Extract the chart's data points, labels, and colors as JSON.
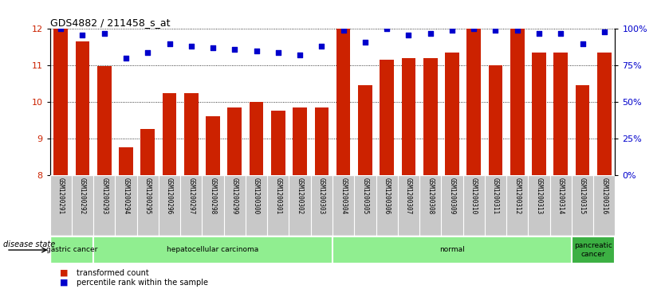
{
  "title": "GDS4882 / 211458_s_at",
  "samples": [
    "GSM1200291",
    "GSM1200292",
    "GSM1200293",
    "GSM1200294",
    "GSM1200295",
    "GSM1200296",
    "GSM1200297",
    "GSM1200298",
    "GSM1200299",
    "GSM1200300",
    "GSM1200301",
    "GSM1200302",
    "GSM1200303",
    "GSM1200304",
    "GSM1200305",
    "GSM1200306",
    "GSM1200307",
    "GSM1200308",
    "GSM1200309",
    "GSM1200310",
    "GSM1200311",
    "GSM1200312",
    "GSM1200313",
    "GSM1200314",
    "GSM1200315",
    "GSM1200316"
  ],
  "transformed_count": [
    12.0,
    11.65,
    10.98,
    8.75,
    9.25,
    10.25,
    10.25,
    9.6,
    9.85,
    10.0,
    9.75,
    9.85,
    9.85,
    12.0,
    10.45,
    11.15,
    11.2,
    11.2,
    11.35,
    12.0,
    11.0,
    12.0,
    11.35,
    11.35,
    10.45,
    11.35
  ],
  "percentile_rank": [
    100,
    96,
    97,
    80,
    84,
    90,
    88,
    87,
    86,
    85,
    84,
    82,
    88,
    99,
    91,
    100,
    96,
    97,
    99,
    100,
    99,
    99,
    97,
    97,
    90,
    98
  ],
  "disease_groups": [
    {
      "label": "gastric cancer",
      "start": 0,
      "end": 2,
      "color": "#90EE90"
    },
    {
      "label": "hepatocellular carcinoma",
      "start": 2,
      "end": 13,
      "color": "#90EE90"
    },
    {
      "label": "normal",
      "start": 13,
      "end": 24,
      "color": "#90EE90"
    },
    {
      "label": "pancreatic\ncancer",
      "start": 24,
      "end": 26,
      "color": "#3CB043"
    }
  ],
  "bar_color": "#CC2200",
  "dot_color": "#0000CC",
  "ylim_left": [
    8,
    12
  ],
  "ylim_right": [
    0,
    100
  ],
  "yticks_left": [
    8,
    9,
    10,
    11,
    12
  ],
  "yticks_right": [
    0,
    25,
    50,
    75,
    100
  ],
  "background_color": "#FFFFFF",
  "legend_tc": "transformed count",
  "legend_pr": "percentile rank within the sample",
  "xtick_bg": "#C8C8C8",
  "xtick_border": "#FFFFFF"
}
